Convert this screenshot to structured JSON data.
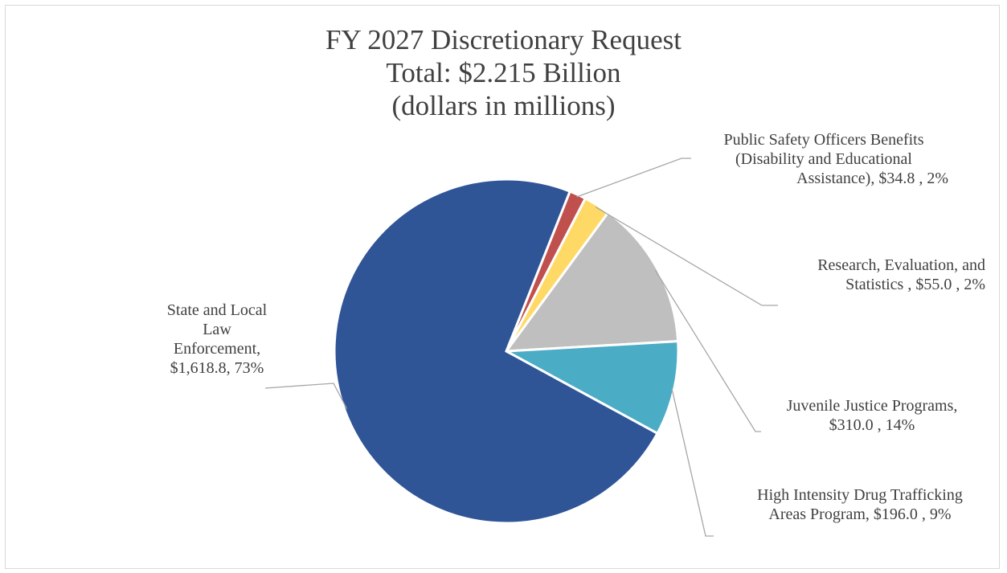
{
  "chart_data": {
    "type": "pie",
    "title_lines": [
      "FY 2027 Discretionary Request",
      "Total: $2.215 Billion",
      "(dollars in millions)"
    ],
    "slices": [
      {
        "name": "State and Local Law Enforcement",
        "value": 1618.8,
        "percent": 73,
        "color": "#2F5597",
        "label_lines": [
          "State and Local",
          "Law",
          "Enforcement,",
          "$1,618.8, 73%"
        ]
      },
      {
        "name": "Public Safety Officers Benefits (Disability and Educational Assistance)",
        "value": 34.8,
        "percent": 2,
        "color": "#C0504D",
        "label_lines": [
          "Public Safety Officers Benefits",
          "(Disability and Educational",
          "Assistance), $34.8 , 2%"
        ]
      },
      {
        "name": "Research, Evaluation, and Statistics",
        "value": 55.0,
        "percent": 2,
        "color": "#FFD966",
        "label_lines": [
          "Research, Evaluation, and",
          "Statistics , $55.0 , 2%"
        ]
      },
      {
        "name": "Juvenile Justice Programs",
        "value": 310.0,
        "percent": 14,
        "color": "#BFBFBF",
        "label_lines": [
          "Juvenile Justice Programs,",
          "$310.0 , 14%"
        ]
      },
      {
        "name": "High Intensity Drug Trafficking Areas Program",
        "value": 196.0,
        "percent": 9,
        "color": "#4BACC6",
        "label_lines": [
          "High Intensity Drug Trafficking",
          "Areas Program, $196.0 , 9%"
        ]
      }
    ]
  }
}
